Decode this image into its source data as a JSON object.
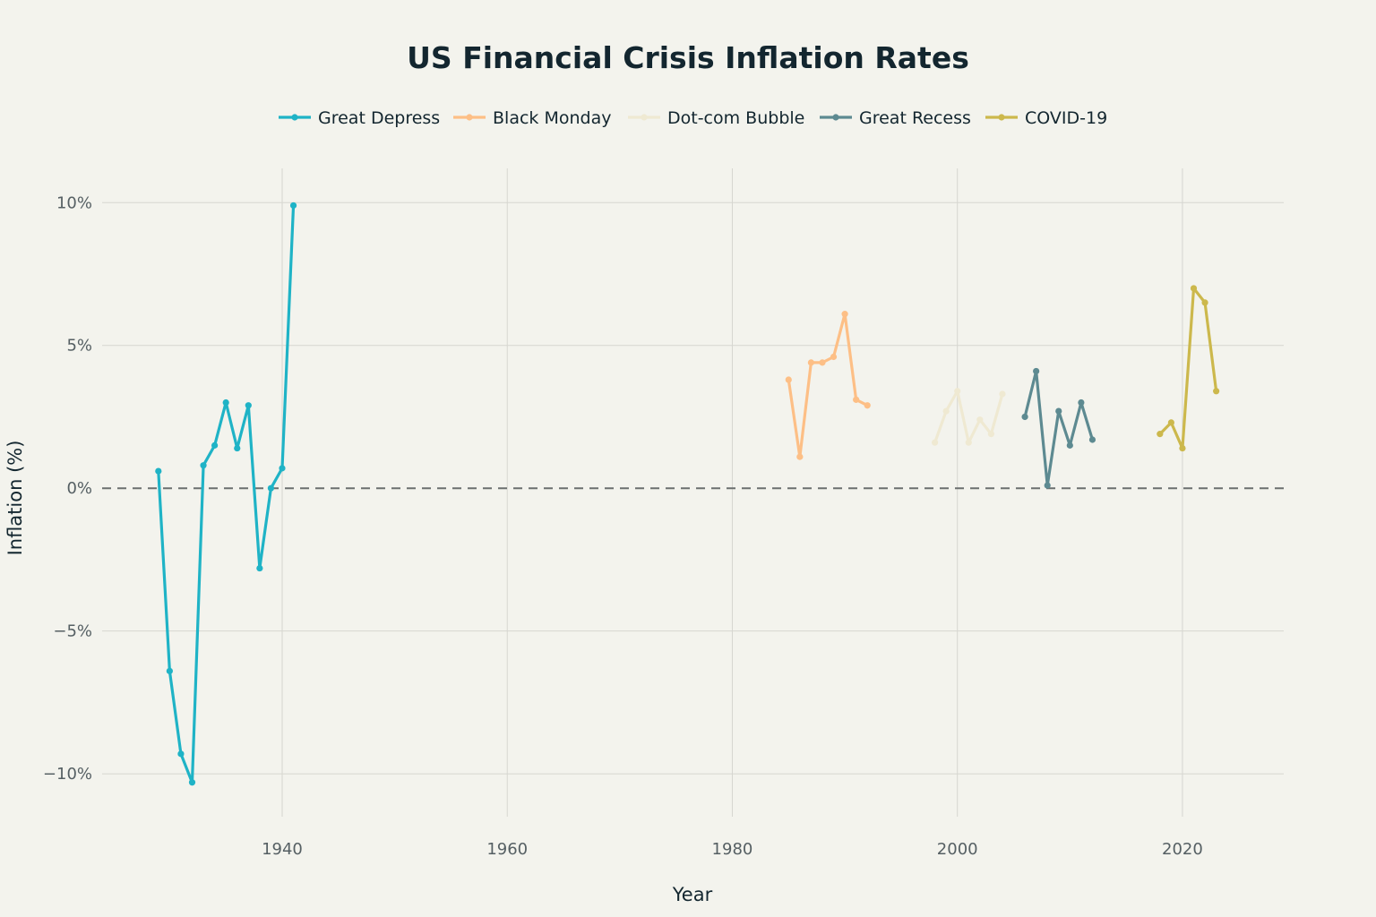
{
  "chart_data": {
    "type": "line",
    "title": "US Financial Crisis Inflation Rates",
    "xlabel": "Year",
    "ylabel": "Inflation (%)",
    "xlim": [
      1924,
      2029
    ],
    "ylim": [
      -11.5,
      11.2
    ],
    "x_ticks": [
      1940,
      1960,
      1980,
      2000,
      2020
    ],
    "y_ticks": [
      {
        "value": 10,
        "label": "10%"
      },
      {
        "value": 5,
        "label": "5%"
      },
      {
        "value": 0,
        "label": "0%"
      },
      {
        "value": -5,
        "label": "−5%"
      },
      {
        "value": -10,
        "label": "−10%"
      }
    ],
    "grid": true,
    "legend_position": "top-center",
    "reference_line": {
      "y": 0,
      "style": "dashed",
      "color": "#6b6f6f"
    },
    "series": [
      {
        "name": "Great Depress",
        "color": "#1fb3c6",
        "x": [
          1929,
          1930,
          1931,
          1932,
          1933,
          1934,
          1935,
          1936,
          1937,
          1938,
          1939,
          1940,
          1941
        ],
        "y": [
          0.6,
          -6.4,
          -9.3,
          -10.3,
          0.8,
          1.5,
          3.0,
          1.4,
          2.9,
          -2.8,
          0.0,
          0.7,
          9.9
        ]
      },
      {
        "name": "Black Monday",
        "color": "#fdbf86",
        "x": [
          1985,
          1986,
          1987,
          1988,
          1989,
          1990,
          1991,
          1992
        ],
        "y": [
          3.8,
          1.1,
          4.4,
          4.4,
          4.6,
          6.1,
          3.1,
          2.9
        ]
      },
      {
        "name": "Dot-com Bubble",
        "color": "#efe9d2",
        "x": [
          1998,
          1999,
          2000,
          2001,
          2002,
          2003,
          2004
        ],
        "y": [
          1.6,
          2.7,
          3.4,
          1.6,
          2.4,
          1.9,
          3.3
        ]
      },
      {
        "name": "Great Recess",
        "color": "#5d8a91",
        "x": [
          2006,
          2007,
          2008,
          2009,
          2010,
          2011,
          2012
        ],
        "y": [
          2.5,
          4.1,
          0.1,
          2.7,
          1.5,
          3.0,
          1.7
        ]
      },
      {
        "name": "COVID-19",
        "color": "#ccb84c",
        "x": [
          2018,
          2019,
          2020,
          2021,
          2022,
          2023
        ],
        "y": [
          1.9,
          2.3,
          1.4,
          7.0,
          6.5,
          3.4
        ]
      }
    ]
  }
}
